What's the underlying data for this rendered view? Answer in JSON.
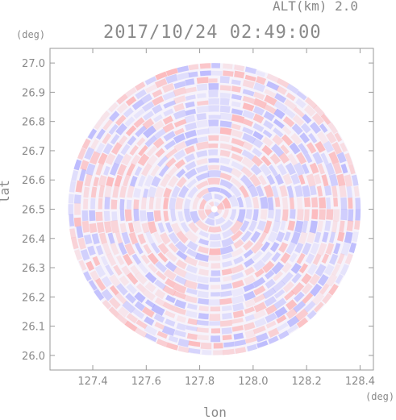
{
  "header": {
    "alt_label": "ALT(km) 2.0",
    "time_label": "2017/10/24 02:49:00"
  },
  "axes": {
    "y_unit": "(deg)",
    "x_unit": "(deg)",
    "y_label": "lat",
    "x_label": "lon"
  },
  "chart_data": {
    "type": "heatmap",
    "title": "2017/10/24 02:49:00",
    "subtitle": "ALT(km) 2.0",
    "xlabel": "lon",
    "ylabel": "lat",
    "x_unit": "(deg)",
    "y_unit": "(deg)",
    "xlim": [
      127.24,
      128.45
    ],
    "ylim": [
      25.95,
      27.05
    ],
    "x_ticks": [
      127.4,
      127.6,
      127.8,
      128.0,
      128.2,
      128.4
    ],
    "x_tick_labels": [
      "127.4",
      "127.6",
      "127.8",
      "128.0",
      "128.2",
      "128.4"
    ],
    "y_ticks": [
      26.0,
      26.1,
      26.2,
      26.3,
      26.4,
      26.5,
      26.6,
      26.7,
      26.8,
      26.9,
      27.0
    ],
    "y_tick_labels": [
      "26.0",
      "26.1",
      "26.2",
      "26.3",
      "26.4",
      "26.5",
      "26.6",
      "26.7",
      "26.8",
      "26.9",
      "27.0"
    ],
    "radar_center": [
      127.855,
      26.5
    ],
    "radar_radius_lat": 0.5,
    "colors": {
      "positive": "#ff9a9a",
      "negative": "#9a9aff",
      "axis": "#9a9a9a"
    },
    "grid": false
  }
}
